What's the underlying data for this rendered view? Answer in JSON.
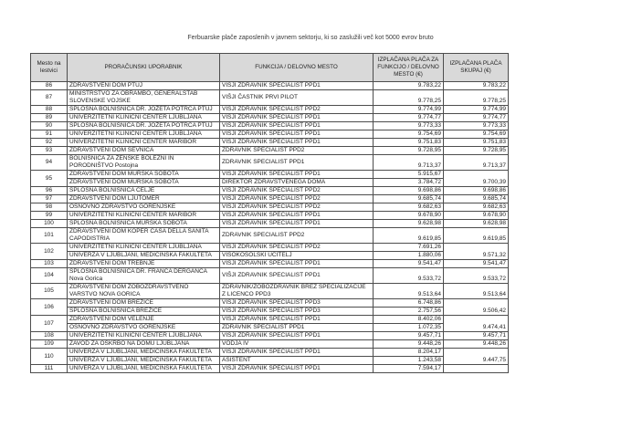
{
  "page": {
    "title": "Ferbuarske plače zaposlenih v javnem sektorju, ki so zaslužili več kot 5000 evrov bruto"
  },
  "colors": {
    "header_background": "#d9d9d9",
    "table_border": "#4d4d4d",
    "text": "#222222",
    "page_background": "#ffffff"
  },
  "table": {
    "headers": [
      "Mesto na lestvici",
      "PRORAČUNSKI UPORABNIK",
      "FUNKCIJA / DELOVNO MESTO",
      "IZPLAČANA PLAČA ZA FUNKCIJO / DELOVNO MESTO (€)",
      "IZPLAČANA PLAČA SKUPAJ (€)"
    ],
    "groups": [
      {
        "rank": "86",
        "total": "9.783,22",
        "entries": [
          {
            "user": "ZDRAVSTVENI DOM PTUJ",
            "role": "VIŠJI ZDRAVNIK SPECIALIST PPD1",
            "pay": "9.783,22"
          }
        ]
      },
      {
        "rank": "87",
        "total": "9.778,25",
        "entries": [
          {
            "user": "MINISTRSTVO ZA OBRAMBO, GENERALŠTAB SLOVENSKE VOJSKE",
            "role": "VIŠJI ČASTNIK PRVI PILOT",
            "pay": "9.778,25"
          }
        ]
      },
      {
        "rank": "88",
        "total": "9.774,99",
        "entries": [
          {
            "user": "SPLOŠNA BOLNIŠNICA DR. JOŽETA POTRČA PTUJ",
            "role": "VIŠJI ZDRAVNIK SPECIALIST PPD2",
            "pay": "9.774,99"
          }
        ]
      },
      {
        "rank": "89",
        "total": "9.774,77",
        "entries": [
          {
            "user": "UNIVERZITETNI KLINIČNI CENTER LJUBLJANA",
            "role": "VIŠJI ZDRAVNIK SPECIALIST PPD1",
            "pay": "9.774,77"
          }
        ]
      },
      {
        "rank": "90",
        "total": "9.773,33",
        "entries": [
          {
            "user": "SPLOŠNA BOLNIŠNICA DR. JOŽETA POTRČA PTUJ",
            "role": "VIŠJI ZDRAVNIK SPECIALIST PPD1",
            "pay": "9.773,33"
          }
        ]
      },
      {
        "rank": "91",
        "total": "9.754,69",
        "entries": [
          {
            "user": "UNIVERZITETNI KLINIČNI CENTER LJUBLJANA",
            "role": "VIŠJI ZDRAVNIK SPECIALIST PPD1",
            "pay": "9.754,69"
          }
        ]
      },
      {
        "rank": "92",
        "total": "9.751,83",
        "entries": [
          {
            "user": "UNIVERZITETNI KLINIČNI CENTER MARIBOR",
            "role": "VIŠJI ZDRAVNIK SPECIALIST PPD1",
            "pay": "9.751,83"
          }
        ]
      },
      {
        "rank": "93",
        "total": "9.728,95",
        "entries": [
          {
            "user": "ZDRAVSTVENI DOM SEVNICA",
            "role": "ZDRAVNIK SPECIALIST PPD2",
            "pay": "9.728,95"
          }
        ]
      },
      {
        "rank": "94",
        "total": "9.713,37",
        "entries": [
          {
            "user": "BOLNIŠNICA ZA ŽENSKE BOLEZNI IN PORODNIŠTVO Postojna",
            "role": "ZDRAVNIK SPECIALIST PPD1",
            "pay": "9.713,37"
          }
        ]
      },
      {
        "rank": "95",
        "total": "9.700,39",
        "entries": [
          {
            "user": "ZDRAVSTVENI DOM MURSKA SOBOTA",
            "role": "VIŠJI ZDRAVNIK SPECIALIST PPD1",
            "pay": "5.915,67"
          },
          {
            "user": "ZDRAVSTVENI DOM MURSKA SOBOTA",
            "role": "DIREKTOR ZDRAVSTVENEGA DOMA",
            "pay": "3.784,72"
          }
        ]
      },
      {
        "rank": "96",
        "total": "9.698,86",
        "entries": [
          {
            "user": "SPLOŠNA BOLNIŠNICA CELJE",
            "role": "VIŠJI ZDRAVNIK SPECIALIST PPD2",
            "pay": "9.698,86"
          }
        ]
      },
      {
        "rank": "97",
        "total": "9.685,74",
        "entries": [
          {
            "user": "ZDRAVSTVENI DOM LJUTOMER",
            "role": "VIŠJI ZDRAVNIK SPECIALIST PPD2",
            "pay": "9.685,74"
          }
        ]
      },
      {
        "rank": "98",
        "total": "9.682,63",
        "entries": [
          {
            "user": "OSNOVNO ZDRAVSTVO GORENJSKE",
            "role": "VIŠJI ZDRAVNIK SPECIALIST PPD2",
            "pay": "9.682,63"
          }
        ]
      },
      {
        "rank": "99",
        "total": "9.678,90",
        "entries": [
          {
            "user": "UNIVERZITETNI KLINIČNI CENTER MARIBOR",
            "role": "VIŠJI ZDRAVNIK SPECIALIST PPD1",
            "pay": "9.678,90"
          }
        ]
      },
      {
        "rank": "100",
        "total": "9.628,98",
        "entries": [
          {
            "user": "SPLOŠNA BOLNIŠNICA MURSKA SOBOTA",
            "role": "VIŠJI ZDRAVNIK SPECIALIST PPD1",
            "pay": "9.628,98"
          }
        ]
      },
      {
        "rank": "101",
        "total": "9.619,85",
        "entries": [
          {
            "user": "ZDRAVSTVENI DOM KOPER CASA DELLA SANITA CAPODISTRIA",
            "role": "ZDRAVNIK SPECIALIST PPD2",
            "pay": "9.619,85"
          }
        ]
      },
      {
        "rank": "102",
        "total": "9.571,32",
        "entries": [
          {
            "user": "UNIVERZITETNI KLINIČNI CENTER LJUBLJANA",
            "role": "VIŠJI ZDRAVNIK SPECIALIST PPD2",
            "pay": "7.691,26"
          },
          {
            "user": "UNIVERZA V LJUBLJANI, MEDICINSKA FAKULTETA",
            "role": "VISOKOŠOLSKI UČITELJ",
            "pay": "1.880,06"
          }
        ]
      },
      {
        "rank": "103",
        "total": "9.541,47",
        "entries": [
          {
            "user": "ZDRAVSTVENI DOM TREBNJE",
            "role": "VIŠJI ZDRAVNIK SPECIALIST PPD1",
            "pay": "9.541,47"
          }
        ]
      },
      {
        "rank": "104",
        "total": "9.533,72",
        "entries": [
          {
            "user": "SPLOŠNA BOLNIŠNICA DR. FRANCA DERGANCA Nova Gorica",
            "role": "VIŠJI ZDRAVNIK SPECIALIST PPD1",
            "pay": "9.533,72"
          }
        ]
      },
      {
        "rank": "105",
        "total": "9.513,64",
        "entries": [
          {
            "user": "ZDRAVSTVENI DOM ZOBOZDRAVSTVENO VARSTVO NOVA GORICA",
            "role": "ZDRAVNIK/ZOBOZDRAVNIK BREZ SPECIALIZACIJE Z LICENCO PPD3",
            "pay": "9.513,64"
          }
        ]
      },
      {
        "rank": "106",
        "total": "9.506,42",
        "entries": [
          {
            "user": "ZDRAVSTVENI DOM BREŽICE",
            "role": "VIŠJI ZDRAVNIK SPECIALIST PPD3",
            "pay": "6.748,86"
          },
          {
            "user": "SPLOŠNA BOLNIŠNICA BREŽICE",
            "role": "VIŠJI ZDRAVNIK SPECIALIST PPD3",
            "pay": "2.757,56"
          }
        ]
      },
      {
        "rank": "107",
        "total": "9.474,41",
        "entries": [
          {
            "user": "ZDRAVSTVENI DOM VELENJE",
            "role": "VIŠJI ZDRAVNIK SPECIALIST PPD1",
            "pay": "8.402,06"
          },
          {
            "user": "OSNOVNO ZDRAVSTVO GORENJSKE",
            "role": "ZDRAVNIK SPECIALIST PPD1",
            "pay": "1.072,35"
          }
        ]
      },
      {
        "rank": "108",
        "total": "9.457,71",
        "entries": [
          {
            "user": "UNIVERZITETNI KLINIČNI CENTER LJUBLJANA",
            "role": "VIŠJI ZDRAVNIK SPECIALIST PPD1",
            "pay": "9.457,71"
          }
        ]
      },
      {
        "rank": "109",
        "total": "9.448,26",
        "entries": [
          {
            "user": "ZAVOD ZA OSKRBO NA DOMU LJUBLJANA",
            "role": "VODJA IV",
            "pay": "9.448,26"
          }
        ]
      },
      {
        "rank": "110",
        "total": "9.447,75",
        "entries": [
          {
            "user": "UNIVERZA V LJUBLJANI, MEDICINSKA FAKULTETA",
            "role": "VIŠJI ZDRAVNIK SPECIALIST PPD1",
            "pay": "8.204,17"
          },
          {
            "user": "UNIVERZA V LJUBLJANI, MEDICINSKA FAKULTETA",
            "role": "ASISTENT",
            "pay": "1.243,58"
          }
        ]
      },
      {
        "rank": "111",
        "total": "",
        "entries": [
          {
            "user": "UNIVERZA V LJUBLJANI, MEDICINSKA FAKULTETA",
            "role": "VIŠJI ZDRAVNIK SPECIALIST PPD1",
            "pay": "7.594,17"
          }
        ]
      }
    ]
  }
}
